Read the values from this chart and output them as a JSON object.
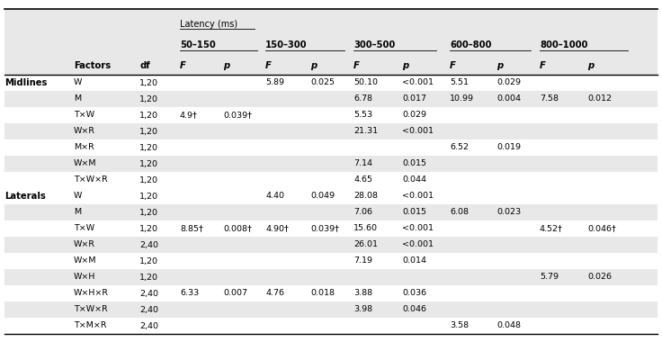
{
  "header_latency": "Latency (ms)",
  "col_groups": [
    "50–150",
    "150–300",
    "300–500",
    "600–800",
    "800–1000"
  ],
  "sections": [
    {
      "section_label": "Midlines",
      "rows": [
        {
          "factor": "W",
          "df": "1,20",
          "f1": "",
          "p1": "",
          "f2": "5.89",
          "p2": "0.025",
          "f3": "50.10",
          "p3": "<0.001",
          "f4": "5.51",
          "p4": "0.029",
          "f5": "",
          "p5": "",
          "shaded": false
        },
        {
          "factor": "M",
          "df": "1,20",
          "f1": "",
          "p1": "",
          "f2": "",
          "p2": "",
          "f3": "6.78",
          "p3": "0.017",
          "f4": "10.99",
          "p4": "0.004",
          "f5": "7.58",
          "p5": "0.012",
          "shaded": true
        },
        {
          "factor": "T×W",
          "df": "1,20",
          "f1": "4.9†",
          "p1": "0.039†",
          "f2": "",
          "p2": "",
          "f3": "5.53",
          "p3": "0.029",
          "f4": "",
          "p4": "",
          "f5": "",
          "p5": "",
          "shaded": false
        },
        {
          "factor": "W×R",
          "df": "1,20",
          "f1": "",
          "p1": "",
          "f2": "",
          "p2": "",
          "f3": "21.31",
          "p3": "<0.001",
          "f4": "",
          "p4": "",
          "f5": "",
          "p5": "",
          "shaded": true
        },
        {
          "factor": "M×R",
          "df": "1,20",
          "f1": "",
          "p1": "",
          "f2": "",
          "p2": "",
          "f3": "",
          "p3": "",
          "f4": "6.52",
          "p4": "0.019",
          "f5": "",
          "p5": "",
          "shaded": false
        },
        {
          "factor": "W×M",
          "df": "1,20",
          "f1": "",
          "p1": "",
          "f2": "",
          "p2": "",
          "f3": "7.14",
          "p3": "0.015",
          "f4": "",
          "p4": "",
          "f5": "",
          "p5": "",
          "shaded": true
        },
        {
          "factor": "T×W×R",
          "df": "1,20",
          "f1": "",
          "p1": "",
          "f2": "",
          "p2": "",
          "f3": "4.65",
          "p3": "0.044",
          "f4": "",
          "p4": "",
          "f5": "",
          "p5": "",
          "shaded": false
        }
      ]
    },
    {
      "section_label": "Laterals",
      "rows": [
        {
          "factor": "W",
          "df": "1,20",
          "f1": "",
          "p1": "",
          "f2": "4.40",
          "p2": "0.049",
          "f3": "28.08",
          "p3": "<0.001",
          "f4": "",
          "p4": "",
          "f5": "",
          "p5": "",
          "shaded": false
        },
        {
          "factor": "M",
          "df": "1,20",
          "f1": "",
          "p1": "",
          "f2": "",
          "p2": "",
          "f3": "7.06",
          "p3": "0.015",
          "f4": "6.08",
          "p4": "0.023",
          "f5": "",
          "p5": "",
          "shaded": true
        },
        {
          "factor": "T×W",
          "df": "1,20",
          "f1": "8.85†",
          "p1": "0.008†",
          "f2": "4.90†",
          "p2": "0.039†",
          "f3": "15.60",
          "p3": "<0.001",
          "f4": "",
          "p4": "",
          "f5": "4.52†",
          "p5": "0.046†",
          "shaded": false
        },
        {
          "factor": "W×R",
          "df": "2,40",
          "f1": "",
          "p1": "",
          "f2": "",
          "p2": "",
          "f3": "26.01",
          "p3": "<0.001",
          "f4": "",
          "p4": "",
          "f5": "",
          "p5": "",
          "shaded": true
        },
        {
          "factor": "W×M",
          "df": "1,20",
          "f1": "",
          "p1": "",
          "f2": "",
          "p2": "",
          "f3": "7.19",
          "p3": "0.014",
          "f4": "",
          "p4": "",
          "f5": "",
          "p5": "",
          "shaded": false
        },
        {
          "factor": "W×H",
          "df": "1,20",
          "f1": "",
          "p1": "",
          "f2": "",
          "p2": "",
          "f3": "",
          "p3": "",
          "f4": "",
          "p4": "",
          "f5": "5.79",
          "p5": "0.026",
          "shaded": true
        },
        {
          "factor": "W×H×R",
          "df": "2,40",
          "f1": "6.33",
          "p1": "0.007",
          "f2": "4.76",
          "p2": "0.018",
          "f3": "3.88",
          "p3": "0.036",
          "f4": "",
          "p4": "",
          "f5": "",
          "p5": "",
          "shaded": false
        },
        {
          "factor": "T×W×R",
          "df": "2,40",
          "f1": "",
          "p1": "",
          "f2": "",
          "p2": "",
          "f3": "3.98",
          "p3": "0.046",
          "f4": "",
          "p4": "",
          "f5": "",
          "p5": "",
          "shaded": true
        },
        {
          "factor": "T×M×R",
          "df": "2,40",
          "f1": "",
          "p1": "",
          "f2": "",
          "p2": "",
          "f3": "",
          "p3": "",
          "f4": "3.58",
          "p4": "0.048",
          "f5": "",
          "p5": "",
          "shaded": false
        }
      ]
    }
  ],
  "shaded_color": "#e8e8e8",
  "bg_color": "#ffffff",
  "fig_width": 7.36,
  "fig_height": 3.9,
  "dpi": 100
}
